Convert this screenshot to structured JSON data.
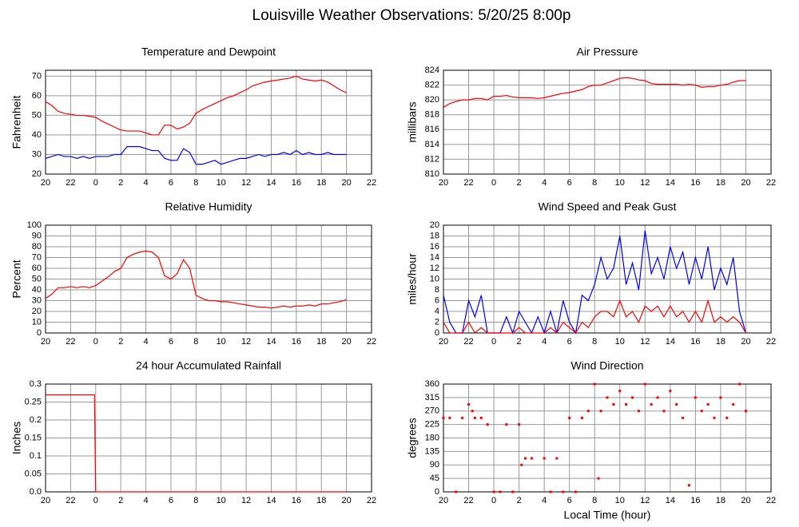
{
  "title": "Louisville Weather Observations: 5/20/25 8:00p",
  "chart_data": [
    {
      "type": "line",
      "title": "Temperature and Dewpoint",
      "ylabel": "Fahrenheit",
      "x": [
        20,
        20.5,
        21,
        21.5,
        22,
        22.5,
        23,
        23.5,
        24,
        24.5,
        25,
        25.5,
        26,
        26.5,
        27,
        27.5,
        28,
        28.5,
        29,
        29.5,
        30,
        30.5,
        31,
        31.5,
        32,
        32.5,
        33,
        33.5,
        34,
        34.5,
        35,
        35.5,
        36,
        36.5,
        37,
        37.5,
        38,
        38.5,
        39,
        39.5,
        40,
        40.5,
        41,
        41.5,
        42,
        42.5,
        43,
        43.5,
        44
      ],
      "series": [
        {
          "color": "#ff0000",
          "values": [
            57,
            55,
            52,
            51,
            50.5,
            50,
            50,
            49.5,
            49,
            47,
            45.5,
            44,
            42.5,
            42,
            42,
            42,
            41,
            40,
            40,
            45,
            45,
            43,
            44,
            46,
            51,
            53,
            54.5,
            56,
            57.5,
            59,
            60,
            61.5,
            63,
            65,
            66,
            67,
            67.5,
            68,
            68.5,
            69,
            70,
            68.5,
            68,
            67.5,
            68,
            67,
            65,
            63,
            61.5
          ]
        },
        {
          "color": "#0000ff",
          "values": [
            28,
            29,
            30,
            29,
            29,
            28,
            29,
            28,
            29,
            29,
            29,
            30,
            30,
            34,
            34,
            34,
            33,
            32,
            32,
            28,
            27,
            27,
            33,
            31,
            25,
            25,
            26,
            27,
            25,
            26,
            27,
            28,
            28,
            29,
            30,
            29,
            30,
            30,
            31,
            30,
            32,
            30,
            31,
            30,
            30,
            31,
            30,
            30,
            30
          ]
        }
      ],
      "xlim": [
        20,
        46
      ],
      "xticks": [
        20,
        22,
        {
          "value": 24,
          "label": "0"
        },
        {
          "value": 26,
          "label": "2"
        },
        {
          "value": 28,
          "label": "4"
        },
        {
          "value": 30,
          "label": "6"
        },
        {
          "value": 32,
          "label": "8"
        },
        {
          "value": 34,
          "label": "10"
        },
        {
          "value": 36,
          "label": "12"
        },
        {
          "value": 38,
          "label": "14"
        },
        {
          "value": 40,
          "label": "16"
        },
        {
          "value": 42,
          "label": "18"
        },
        {
          "value": 44,
          "label": "20"
        },
        {
          "value": 46,
          "label": "22"
        }
      ],
      "ylim": [
        20,
        73
      ],
      "yticks": [
        20,
        30,
        40,
        50,
        60,
        70
      ],
      "grid": true
    },
    {
      "type": "line",
      "title": "Air Pressure",
      "ylabel": "millibars",
      "x": [
        20,
        20.5,
        21,
        21.5,
        22,
        22.5,
        23,
        23.5,
        24,
        24.5,
        25,
        25.5,
        26,
        26.5,
        27,
        27.5,
        28,
        28.5,
        29,
        29.5,
        30,
        30.5,
        31,
        31.5,
        32,
        32.5,
        33,
        33.5,
        34,
        34.5,
        35,
        35.5,
        36,
        36.5,
        37,
        37.5,
        38,
        38.5,
        39,
        39.5,
        40,
        40.5,
        41,
        41.5,
        42,
        42.5,
        43,
        43.5,
        44
      ],
      "series": [
        {
          "color": "#ff0000",
          "values": [
            819,
            819.5,
            819.8,
            820,
            820,
            820.2,
            820.2,
            820,
            820.5,
            820.5,
            820.6,
            820.4,
            820.3,
            820.3,
            820.3,
            820.2,
            820.3,
            820.5,
            820.7,
            820.9,
            821,
            821.2,
            821.4,
            821.8,
            822,
            822,
            822.3,
            822.6,
            822.9,
            823,
            822.9,
            822.7,
            822.6,
            822.2,
            822.1,
            822.1,
            822.1,
            822.1,
            822,
            822.1,
            822,
            821.7,
            821.8,
            821.8,
            822,
            822.1,
            822.4,
            822.6,
            822.6
          ]
        }
      ],
      "xlim": [
        20,
        46
      ],
      "xticks": [
        20,
        22,
        {
          "value": 24,
          "label": "0"
        },
        {
          "value": 26,
          "label": "2"
        },
        {
          "value": 28,
          "label": "4"
        },
        {
          "value": 30,
          "label": "6"
        },
        {
          "value": 32,
          "label": "8"
        },
        {
          "value": 34,
          "label": "10"
        },
        {
          "value": 36,
          "label": "12"
        },
        {
          "value": 38,
          "label": "14"
        },
        {
          "value": 40,
          "label": "16"
        },
        {
          "value": 42,
          "label": "18"
        },
        {
          "value": 44,
          "label": "20"
        },
        {
          "value": 46,
          "label": "22"
        }
      ],
      "ylim": [
        810,
        824
      ],
      "yticks": [
        810,
        812,
        814,
        816,
        818,
        820,
        822,
        824
      ],
      "grid": true
    },
    {
      "type": "line",
      "title": "Relative Humidity",
      "ylabel": "Percent",
      "x": [
        20,
        20.5,
        21,
        21.5,
        22,
        22.5,
        23,
        23.5,
        24,
        24.5,
        25,
        25.5,
        26,
        26.5,
        27,
        27.5,
        28,
        28.5,
        29,
        29.5,
        30,
        30.5,
        31,
        31.5,
        32,
        32.5,
        33,
        33.5,
        34,
        34.5,
        35,
        35.5,
        36,
        36.5,
        37,
        37.5,
        38,
        38.5,
        39,
        39.5,
        40,
        40.5,
        41,
        41.5,
        42,
        42.5,
        43,
        43.5,
        44
      ],
      "series": [
        {
          "color": "#ff0000",
          "values": [
            32,
            36,
            42,
            42,
            43,
            42,
            43,
            42,
            44,
            48,
            52,
            57,
            60,
            70,
            73,
            75,
            76,
            75,
            70,
            53,
            50,
            55,
            68,
            60,
            35,
            32,
            30,
            30,
            29,
            29,
            28,
            27,
            26,
            25,
            24,
            24,
            23,
            24,
            25,
            24,
            25,
            25,
            26,
            25,
            27,
            27,
            28,
            29,
            31
          ]
        }
      ],
      "xlim": [
        20,
        46
      ],
      "xticks": [
        20,
        22,
        {
          "value": 24,
          "label": "0"
        },
        {
          "value": 26,
          "label": "2"
        },
        {
          "value": 28,
          "label": "4"
        },
        {
          "value": 30,
          "label": "6"
        },
        {
          "value": 32,
          "label": "8"
        },
        {
          "value": 34,
          "label": "10"
        },
        {
          "value": 36,
          "label": "12"
        },
        {
          "value": 38,
          "label": "14"
        },
        {
          "value": 40,
          "label": "16"
        },
        {
          "value": 42,
          "label": "18"
        },
        {
          "value": 44,
          "label": "20"
        },
        {
          "value": 46,
          "label": "22"
        }
      ],
      "ylim": [
        0,
        100
      ],
      "yticks": [
        0,
        10,
        20,
        30,
        40,
        50,
        60,
        70,
        80,
        90,
        100
      ],
      "grid": true
    },
    {
      "type": "line",
      "title": "Wind Speed and Peak Gust",
      "ylabel": "miles/hour",
      "x": [
        20,
        20.5,
        21,
        21.5,
        22,
        22.5,
        23,
        23.5,
        24,
        24.5,
        25,
        25.5,
        26,
        26.5,
        27,
        27.5,
        28,
        28.5,
        29,
        29.5,
        30,
        30.5,
        31,
        31.5,
        32,
        32.5,
        33,
        33.5,
        34,
        34.5,
        35,
        35.5,
        36,
        36.5,
        37,
        37.5,
        38,
        38.5,
        39,
        39.5,
        40,
        40.5,
        41,
        41.5,
        42,
        42.5,
        43,
        43.5,
        44
      ],
      "series": [
        {
          "color": "#0000ff",
          "values": [
            7,
            2,
            0,
            0,
            6,
            3,
            7,
            0,
            0,
            0,
            3,
            0,
            4,
            2,
            0,
            3,
            0,
            4,
            0,
            6,
            2,
            0,
            7,
            6,
            9,
            14,
            10,
            12,
            18,
            9,
            13,
            8,
            19,
            11,
            14,
            10,
            16,
            12,
            15,
            9,
            14,
            10,
            16,
            8,
            12,
            9,
            14,
            4,
            0
          ]
        },
        {
          "color": "#ff0000",
          "values": [
            2,
            0,
            0,
            0,
            2,
            0,
            1,
            0,
            0,
            0,
            0,
            0,
            1,
            0,
            0,
            0,
            0,
            1,
            0,
            2,
            1,
            0,
            2,
            1,
            3,
            4,
            4,
            3,
            6,
            3,
            4,
            2,
            5,
            4,
            5,
            3,
            5,
            3,
            4,
            2,
            4,
            2,
            6,
            2,
            3,
            2,
            3,
            2,
            0
          ]
        }
      ],
      "xlim": [
        20,
        46
      ],
      "xticks": [
        20,
        22,
        {
          "value": 24,
          "label": "0"
        },
        {
          "value": 26,
          "label": "2"
        },
        {
          "value": 28,
          "label": "4"
        },
        {
          "value": 30,
          "label": "6"
        },
        {
          "value": 32,
          "label": "8"
        },
        {
          "value": 34,
          "label": "10"
        },
        {
          "value": 36,
          "label": "12"
        },
        {
          "value": 38,
          "label": "14"
        },
        {
          "value": 40,
          "label": "16"
        },
        {
          "value": 42,
          "label": "18"
        },
        {
          "value": 44,
          "label": "20"
        },
        {
          "value": 46,
          "label": "22"
        }
      ],
      "ylim": [
        0,
        20
      ],
      "yticks": [
        0,
        2,
        4,
        6,
        8,
        10,
        12,
        14,
        16,
        18,
        20
      ],
      "grid": true
    },
    {
      "type": "line",
      "title": "24 hour Accumulated Rainfall",
      "ylabel": "Inches",
      "x": [
        20,
        23.9,
        24,
        44
      ],
      "series": [
        {
          "color": "#ff0000",
          "values": [
            0.27,
            0.27,
            0,
            0
          ]
        }
      ],
      "xlim": [
        20,
        46
      ],
      "xticks": [
        20,
        22,
        {
          "value": 24,
          "label": "0"
        },
        {
          "value": 26,
          "label": "2"
        },
        {
          "value": 28,
          "label": "4"
        },
        {
          "value": 30,
          "label": "6"
        },
        {
          "value": 32,
          "label": "8"
        },
        {
          "value": 34,
          "label": "10"
        },
        {
          "value": 36,
          "label": "12"
        },
        {
          "value": 38,
          "label": "14"
        },
        {
          "value": 40,
          "label": "16"
        },
        {
          "value": 42,
          "label": "18"
        },
        {
          "value": 44,
          "label": "20"
        },
        {
          "value": 46,
          "label": "22"
        }
      ],
      "ylim": [
        0,
        0.3
      ],
      "yticks": [
        {
          "value": 0,
          "label": "0.0"
        },
        0.05,
        0.1,
        0.15,
        0.2,
        0.25,
        0.3
      ],
      "grid": true
    },
    {
      "type": "scatter",
      "title": "Wind Direction",
      "ylabel": "degrees",
      "xlabel": "Local Time (hour)",
      "x": [
        20,
        20.5,
        21,
        21.5,
        22,
        22.3,
        22.5,
        23,
        23.5,
        24,
        24.5,
        25,
        25.5,
        26,
        26.2,
        26.5,
        27,
        28,
        28.5,
        29,
        29.5,
        30,
        30.5,
        31,
        31.5,
        32,
        32.3,
        32.5,
        33,
        33.5,
        34,
        34.5,
        35,
        35.5,
        36,
        36.5,
        37,
        37.5,
        38,
        38.5,
        39,
        39.5,
        40,
        40.5,
        41,
        41.5,
        42,
        42.5,
        43,
        43.5,
        44
      ],
      "series": [
        {
          "color": "#ff0000",
          "values": [
            247,
            247,
            0,
            247,
            292,
            270,
            247,
            247,
            225,
            0,
            0,
            225,
            0,
            225,
            90,
            112,
            112,
            112,
            0,
            112,
            0,
            247,
            0,
            247,
            270,
            360,
            45,
            270,
            315,
            292,
            337,
            292,
            315,
            270,
            360,
            292,
            315,
            270,
            337,
            292,
            247,
            22,
            315,
            270,
            292,
            247,
            315,
            247,
            292,
            360,
            270
          ]
        }
      ],
      "xlim": [
        20,
        46
      ],
      "xticks": [
        20,
        22,
        {
          "value": 24,
          "label": "0"
        },
        {
          "value": 26,
          "label": "2"
        },
        {
          "value": 28,
          "label": "4"
        },
        {
          "value": 30,
          "label": "6"
        },
        {
          "value": 32,
          "label": "8"
        },
        {
          "value": 34,
          "label": "10"
        },
        {
          "value": 36,
          "label": "12"
        },
        {
          "value": 38,
          "label": "14"
        },
        {
          "value": 40,
          "label": "16"
        },
        {
          "value": 42,
          "label": "18"
        },
        {
          "value": 44,
          "label": "20"
        },
        {
          "value": 46,
          "label": "22"
        }
      ],
      "ylim": [
        0,
        360
      ],
      "yticks": [
        0,
        45,
        90,
        135,
        180,
        225,
        270,
        315,
        360
      ],
      "grid": true
    }
  ]
}
